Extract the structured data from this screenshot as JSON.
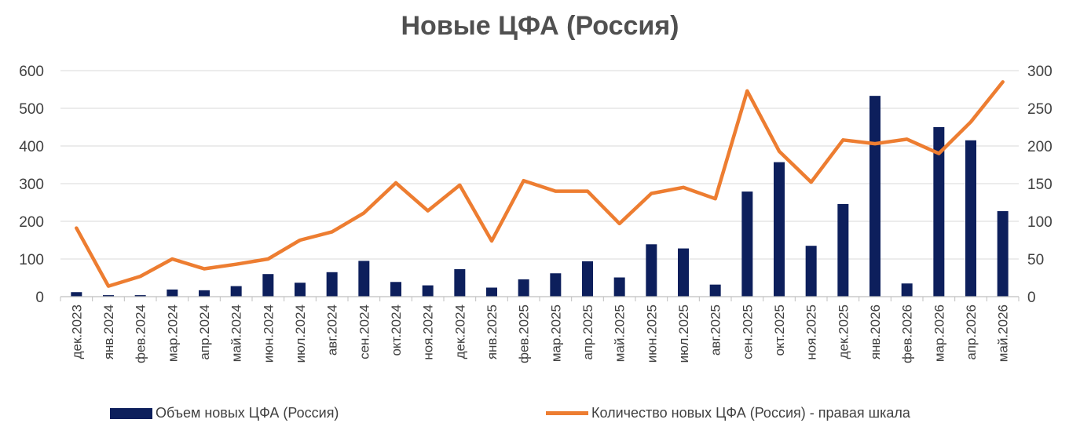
{
  "chart_data": {
    "type": "bar+line",
    "title": "Новые ЦФА (Россия)",
    "categories": [
      "дек.2023",
      "янв.2024",
      "фев.2024",
      "мар.2024",
      "апр.2024",
      "май.2024",
      "июн.2024",
      "июл.2024",
      "авг.2024",
      "сен.2024",
      "окт.2024",
      "ноя.2024",
      "дек.2024",
      "янв.2025",
      "фев.2025",
      "мар.2025",
      "апр.2025",
      "май.2025",
      "июн.2025",
      "июл.2025",
      "авг.2025",
      "сен.2025",
      "окт.2025",
      "ноя.2025",
      "дек.2025",
      "янв.2026",
      "фев.2026",
      "мар.2026",
      "апр.2026",
      "май.2026"
    ],
    "series": [
      {
        "name": "Объем новых ЦФА (Россия)",
        "type": "bar",
        "axis": "left",
        "color": "#0d1f5c",
        "values": [
          12,
          4,
          4,
          19,
          17,
          28,
          60,
          37,
          65,
          95,
          39,
          30,
          73,
          24,
          46,
          62,
          94,
          51,
          139,
          128,
          32,
          279,
          357,
          135,
          246,
          533,
          35,
          450,
          415,
          227
        ]
      },
      {
        "name": "Количество новых ЦФА (Россия) - правая шкала",
        "type": "line",
        "axis": "right",
        "color": "#ed7d31",
        "values": [
          91,
          14,
          27,
          50,
          37,
          43,
          50,
          75,
          86,
          111,
          151,
          114,
          148,
          74,
          154,
          140,
          140,
          97,
          137,
          145,
          130,
          273,
          193,
          152,
          208,
          203,
          209,
          190,
          232,
          285
        ]
      }
    ],
    "y_left": {
      "min": 0,
      "max": 600,
      "ticks": [
        0,
        100,
        200,
        300,
        400,
        500,
        600
      ]
    },
    "y_right": {
      "min": 0,
      "max": 300,
      "ticks": [
        0,
        50,
        100,
        150,
        200,
        250,
        300
      ]
    },
    "grid": true,
    "legend_position": "bottom"
  }
}
